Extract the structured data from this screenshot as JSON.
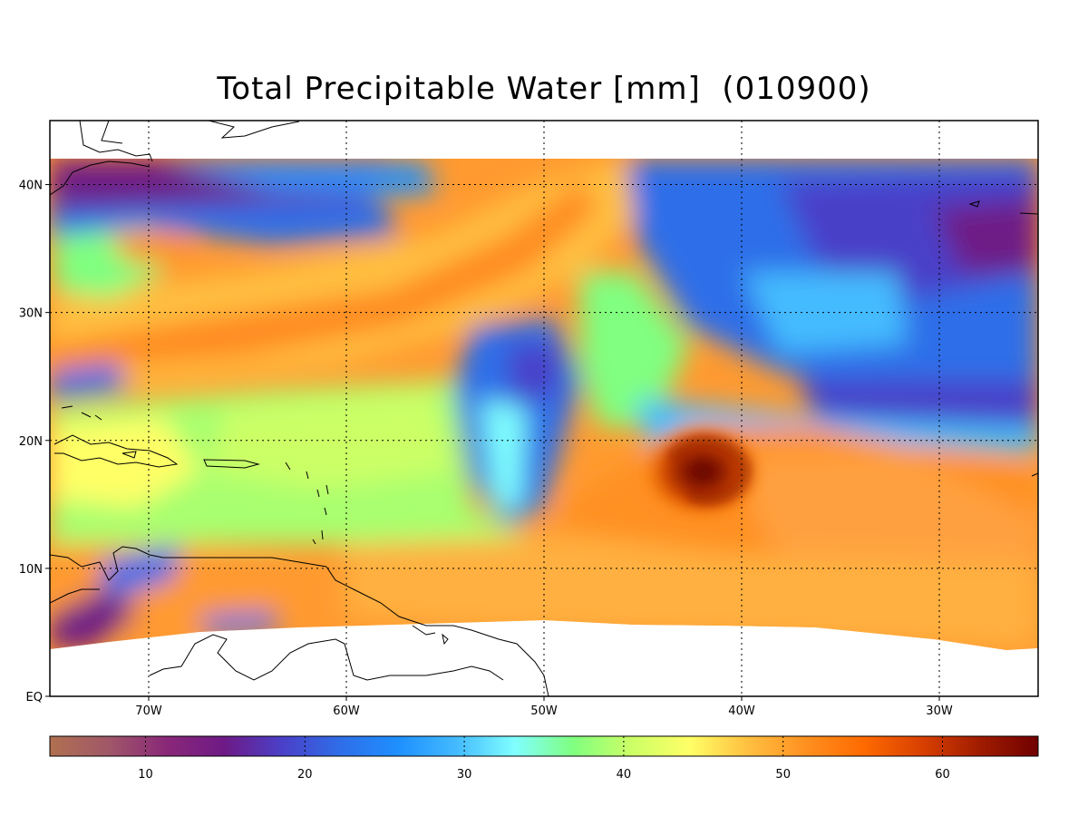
{
  "title": "Total Precipitable Water [mm]  (010900)",
  "map": {
    "lat_ticks": [
      {
        "label": "40N",
        "value": 40
      },
      {
        "label": "30N",
        "value": 30
      },
      {
        "label": "20N",
        "value": 20
      },
      {
        "label": "10N",
        "value": 10
      },
      {
        "label": "EQ",
        "value": 0
      }
    ],
    "lon_ticks": [
      {
        "label": "70W",
        "value": -70
      },
      {
        "label": "60W",
        "value": -60
      },
      {
        "label": "50W",
        "value": -50
      },
      {
        "label": "40W",
        "value": -40
      },
      {
        "label": "30W",
        "value": -30
      }
    ],
    "lon_range": [
      -75,
      -25
    ],
    "lat_range": [
      0,
      45
    ],
    "data_lat_range": [
      4,
      42
    ],
    "storm_center": {
      "lon": -42,
      "lat": 17
    }
  },
  "colorbar": {
    "range": [
      4,
      66
    ],
    "tick_labels": [
      "10",
      "20",
      "30",
      "40",
      "50",
      "60"
    ],
    "tick_values": [
      10,
      20,
      30,
      40,
      50,
      60
    ],
    "colors": [
      "#b07050",
      "#a05868",
      "#8a2878",
      "#6e1a86",
      "#4a40c8",
      "#2f6ee8",
      "#1e90ff",
      "#44bbff",
      "#80ffff",
      "#80ff80",
      "#ccff66",
      "#ffff66",
      "#ffc040",
      "#ff9020",
      "#ff6a00",
      "#d84000",
      "#a01c00",
      "#700000"
    ]
  }
}
